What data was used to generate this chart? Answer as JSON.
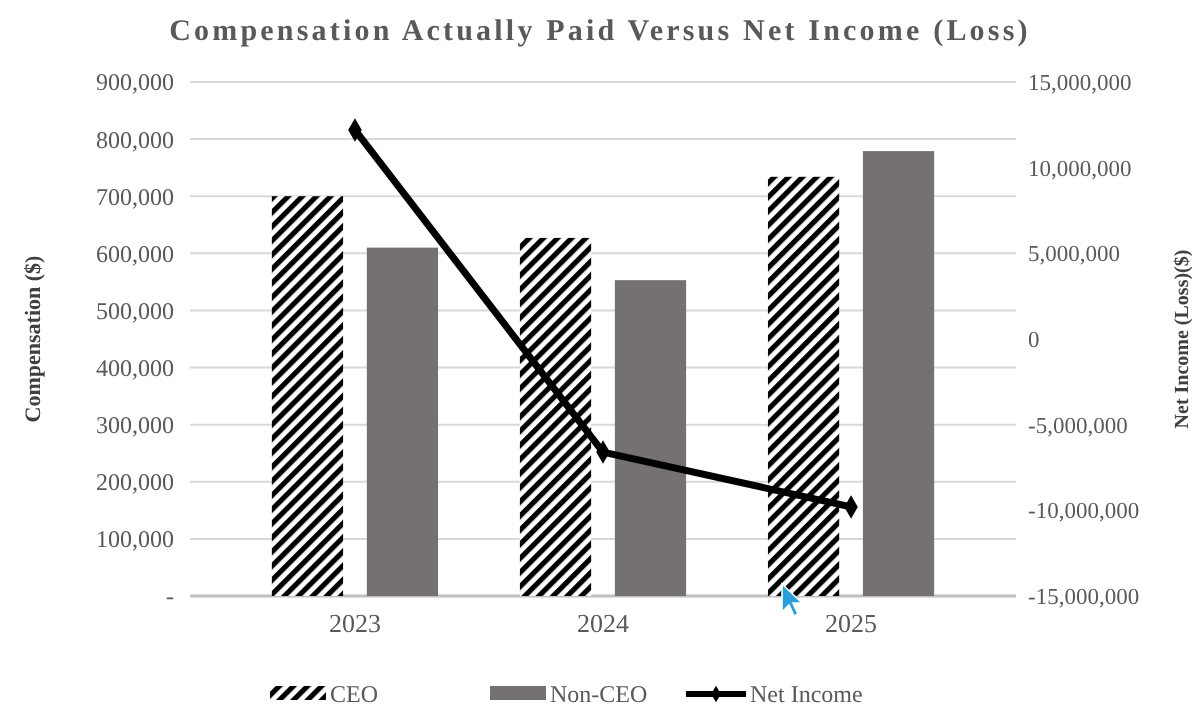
{
  "chart_data": {
    "type": "bar",
    "title": "Compensation Actually Paid Versus Net Income (Loss)",
    "ylabel": "Compensation ($)",
    "y2label": "Net Income (Loss)($)",
    "categories": [
      "2023",
      "2024",
      "2025"
    ],
    "series": [
      {
        "name": "CEO",
        "color": "#000000",
        "values": [
          700000,
          627000,
          734000
        ]
      },
      {
        "name": "Non-CEO",
        "color": "#767171",
        "values": [
          610000,
          553000,
          779000
        ]
      },
      {
        "name": "Net Income",
        "type": "line",
        "axis": "y2",
        "color": "#000000",
        "values": [
          12200000,
          -6600000,
          -9800000
        ],
        "marker": "diamond"
      }
    ],
    "ylim": [
      0,
      900000
    ],
    "yticks": [
      {
        "value": 0,
        "label": "-"
      },
      {
        "value": 100000,
        "label": "100,000"
      },
      {
        "value": 200000,
        "label": "200,000"
      },
      {
        "value": 300000,
        "label": "300,000"
      },
      {
        "value": 400000,
        "label": "400,000"
      },
      {
        "value": 500000,
        "label": "500,000"
      },
      {
        "value": 600000,
        "label": "600,000"
      },
      {
        "value": 700000,
        "label": "700,000"
      },
      {
        "value": 800000,
        "label": "800,000"
      },
      {
        "value": 900000,
        "label": "900,000"
      }
    ],
    "y2lim": [
      -15000000,
      15000000
    ],
    "y2ticks": [
      {
        "value": -15000000,
        "label": "-15,000,000"
      },
      {
        "value": -10000000,
        "label": "-10,000,000"
      },
      {
        "value": -5000000,
        "label": "-5,000,000"
      },
      0,
      {
        "value": 5000000,
        "label": "5,000,000"
      },
      {
        "value": 10000000,
        "label": "10,000,000"
      },
      {
        "value": 15000000,
        "label": "15,000,000"
      }
    ],
    "grid": "y",
    "legend": "bottom"
  }
}
